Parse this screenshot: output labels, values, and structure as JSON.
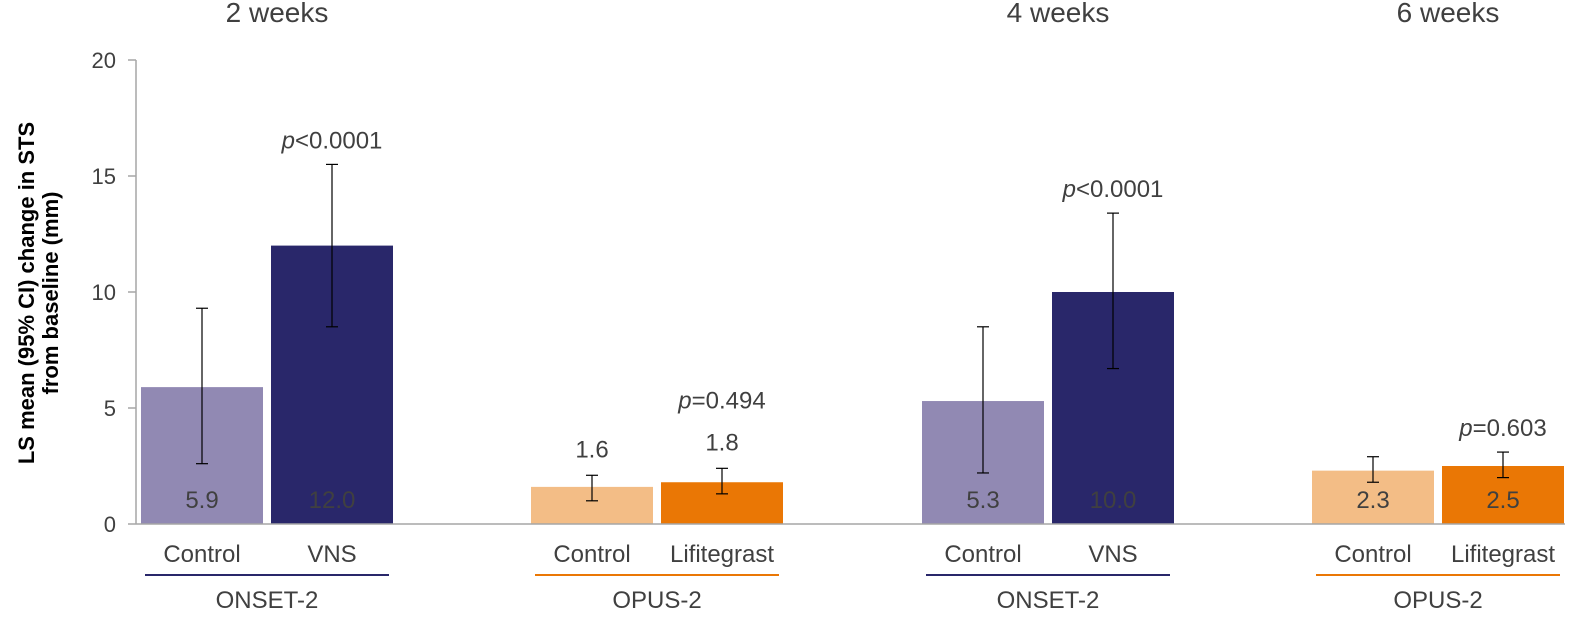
{
  "chart_data": {
    "type": "bar",
    "ylabel_line1": "LS mean (95% CI) change in STS",
    "ylabel_line2": "from baseline (mm)",
    "ylim": [
      0,
      20
    ],
    "yticks": [
      "0",
      "5",
      "10",
      "15",
      "20"
    ],
    "ytick_values": [
      0,
      5,
      10,
      15,
      20
    ],
    "grid": false,
    "colors": {
      "onset_control": "#9189b3",
      "onset_vns": "#29276a",
      "opus_control": "#f3bd86",
      "opus_lifitegrast": "#ea7705",
      "onset_line": "#29276a",
      "opus_line": "#ea7705"
    },
    "groups": [
      {
        "timepoint": "2 weeks",
        "study": "ONSET-2",
        "p_prefix": "p",
        "p_rest": "<0.0001",
        "bars": [
          {
            "category": "Control",
            "value": 5.9,
            "label": "5.9",
            "ci": [
              2.6,
              9.3
            ],
            "color_key": "onset_control",
            "label_position": "inside"
          },
          {
            "category": "VNS",
            "value": 12.0,
            "label": "12.0",
            "ci": [
              8.5,
              15.5
            ],
            "color_key": "onset_vns",
            "label_position": "inside"
          }
        ]
      },
      {
        "timepoint": "",
        "study": "OPUS-2",
        "p_prefix": "p",
        "p_rest": "=0.494",
        "bars": [
          {
            "category": "Control",
            "value": 1.6,
            "label": "1.6",
            "ci": [
              1.0,
              2.1
            ],
            "color_key": "opus_control",
            "label_position": "above"
          },
          {
            "category": "Lifitegrast",
            "value": 1.8,
            "label": "1.8",
            "ci": [
              1.3,
              2.4
            ],
            "color_key": "opus_lifitegrast",
            "label_position": "above"
          }
        ]
      },
      {
        "timepoint": "4 weeks",
        "study": "ONSET-2",
        "p_prefix": "p",
        "p_rest": "<0.0001",
        "bars": [
          {
            "category": "Control",
            "value": 5.3,
            "label": "5.3",
            "ci": [
              2.2,
              8.5
            ],
            "color_key": "onset_control",
            "label_position": "inside"
          },
          {
            "category": "VNS",
            "value": 10.0,
            "label": "10.0",
            "ci": [
              6.7,
              13.4
            ],
            "color_key": "onset_vns",
            "label_position": "inside"
          }
        ]
      },
      {
        "timepoint": "6 weeks",
        "study": "OPUS-2",
        "p_prefix": "p",
        "p_rest": "=0.603",
        "bars": [
          {
            "category": "Control",
            "value": 2.3,
            "label": "2.3",
            "ci": [
              1.8,
              2.9
            ],
            "color_key": "opus_control",
            "label_position": "inside"
          },
          {
            "category": "Lifitegrast",
            "value": 2.5,
            "label": "2.5",
            "ci": [
              2.0,
              3.1
            ],
            "color_key": "opus_lifitegrast",
            "label_position": "inside"
          }
        ]
      }
    ]
  }
}
